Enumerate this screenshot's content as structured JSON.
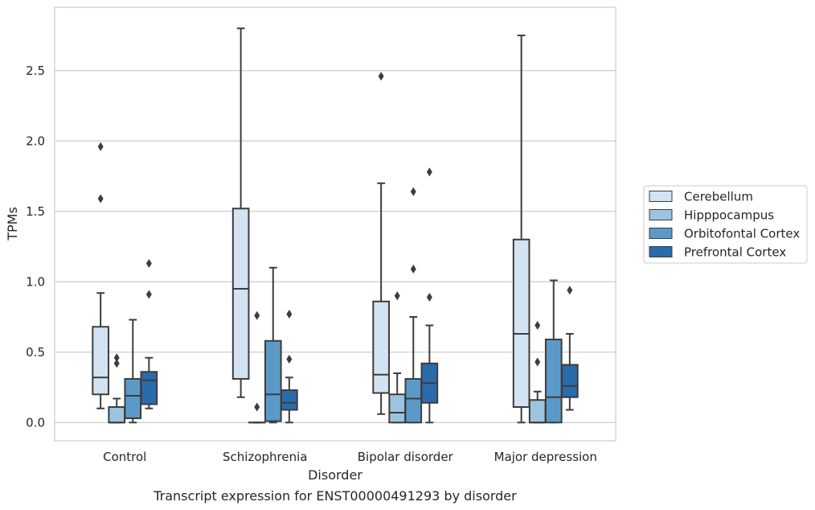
{
  "chart_data": {
    "type": "box",
    "xlabel": "Disorder",
    "ylabel": "TPMs",
    "caption": "Transcript expression for ENST00000491293 by disorder",
    "ylim": [
      -0.13,
      2.95
    ],
    "yticks": [
      0.0,
      0.5,
      1.0,
      1.5,
      2.0,
      2.5
    ],
    "ytick_labels": [
      "0.0",
      "0.5",
      "1.0",
      "1.5",
      "2.0",
      "2.5"
    ],
    "grid": "horizontal",
    "legend_position": "right",
    "categories": [
      "Control",
      "Schizophrenia",
      "Bipolar disorder",
      "Major depression"
    ],
    "series": [
      {
        "name": "Cerebellum",
        "color": "#d3e3f1",
        "boxes": [
          {
            "whisker_low": 0.1,
            "q1": 0.2,
            "median": 0.32,
            "q3": 0.68,
            "whisker_high": 0.92,
            "outliers": [
              1.59,
              1.96
            ]
          },
          {
            "whisker_low": 0.18,
            "q1": 0.31,
            "median": 0.95,
            "q3": 1.52,
            "whisker_high": 2.8,
            "outliers": []
          },
          {
            "whisker_low": 0.06,
            "q1": 0.21,
            "median": 0.34,
            "q3": 0.86,
            "whisker_high": 1.7,
            "outliers": [
              2.46
            ]
          },
          {
            "whisker_low": 0.0,
            "q1": 0.11,
            "median": 0.63,
            "q3": 1.3,
            "whisker_high": 2.75,
            "outliers": []
          }
        ]
      },
      {
        "name": "Hipppocampus",
        "color": "#9cc4de",
        "boxes": [
          {
            "whisker_low": 0.0,
            "q1": 0.0,
            "median": 0.0,
            "q3": 0.11,
            "whisker_high": 0.17,
            "outliers": [
              0.42,
              0.46
            ]
          },
          {
            "whisker_low": 0.0,
            "q1": 0.0,
            "median": 0.0,
            "q3": 0.0,
            "whisker_high": 0.0,
            "outliers": [
              0.11,
              0.76
            ]
          },
          {
            "whisker_low": 0.0,
            "q1": 0.0,
            "median": 0.07,
            "q3": 0.2,
            "whisker_high": 0.35,
            "outliers": [
              0.9
            ]
          },
          {
            "whisker_low": 0.0,
            "q1": 0.0,
            "median": 0.0,
            "q3": 0.16,
            "whisker_high": 0.22,
            "outliers": [
              0.43,
              0.69
            ]
          }
        ]
      },
      {
        "name": "Orbitofontal Cortex",
        "color": "#5b9ac8",
        "boxes": [
          {
            "whisker_low": 0.0,
            "q1": 0.03,
            "median": 0.19,
            "q3": 0.31,
            "whisker_high": 0.73,
            "outliers": []
          },
          {
            "whisker_low": 0.0,
            "q1": 0.01,
            "median": 0.2,
            "q3": 0.58,
            "whisker_high": 1.1,
            "outliers": []
          },
          {
            "whisker_low": 0.0,
            "q1": 0.0,
            "median": 0.17,
            "q3": 0.31,
            "whisker_high": 0.75,
            "outliers": [
              1.09,
              1.64
            ]
          },
          {
            "whisker_low": 0.0,
            "q1": 0.0,
            "median": 0.18,
            "q3": 0.59,
            "whisker_high": 1.01,
            "outliers": []
          }
        ]
      },
      {
        "name": "Prefrontal Cortex",
        "color": "#2a6bac",
        "boxes": [
          {
            "whisker_low": 0.1,
            "q1": 0.13,
            "median": 0.3,
            "q3": 0.36,
            "whisker_high": 0.46,
            "outliers": [
              0.91,
              1.13
            ]
          },
          {
            "whisker_low": 0.0,
            "q1": 0.09,
            "median": 0.14,
            "q3": 0.23,
            "whisker_high": 0.32,
            "outliers": [
              0.45,
              0.77
            ]
          },
          {
            "whisker_low": 0.0,
            "q1": 0.14,
            "median": 0.28,
            "q3": 0.42,
            "whisker_high": 0.69,
            "outliers": [
              0.89,
              1.78
            ]
          },
          {
            "whisker_low": 0.09,
            "q1": 0.18,
            "median": 0.26,
            "q3": 0.41,
            "whisker_high": 0.63,
            "outliers": [
              0.94
            ]
          }
        ]
      }
    ]
  }
}
